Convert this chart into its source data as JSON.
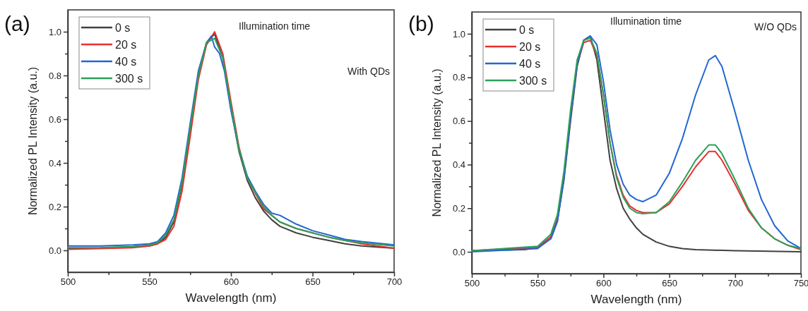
{
  "chart_data": [
    {
      "type": "line",
      "xlabel": "Wavelength (nm)",
      "ylabel": "Normalized PL Intensity (a.u.)",
      "legend_title": "Illumination time",
      "legend": "top left",
      "line_style": "solid",
      "marker": "none",
      "grid": false,
      "annotations": [
        "(a)",
        "With QDs"
      ],
      "xlim": [
        500,
        700
      ],
      "xticks": [
        500,
        {
          "value": 525,
          "label": null
        },
        550,
        {
          "value": 575,
          "label": null
        },
        600,
        {
          "value": 625,
          "label": null
        },
        650,
        {
          "value": 675,
          "label": null
        },
        700
      ],
      "ylim": [
        -0.1,
        1.1
      ],
      "yticks": [
        {
          "value": 0,
          "label": "0.0"
        },
        {
          "value": 0.1,
          "label": null
        },
        {
          "value": 0.2,
          "label": "0.2"
        },
        {
          "value": 0.3,
          "label": null
        },
        {
          "value": 0.4,
          "label": "0.4"
        },
        {
          "value": 0.5,
          "label": null
        },
        {
          "value": 0.6,
          "label": "0.6"
        },
        {
          "value": 0.7,
          "label": null
        },
        {
          "value": 0.8,
          "label": "0.8"
        },
        {
          "value": 0.9,
          "label": null
        },
        {
          "value": 1.0,
          "label": "1.0"
        }
      ],
      "series": [
        {
          "name": "0 s",
          "color": "#404040",
          "x": [
            500,
            520,
            540,
            550,
            555,
            560,
            565,
            570,
            575,
            580,
            585,
            590,
            595,
            600,
            605,
            610,
            615,
            620,
            625,
            630,
            640,
            650,
            660,
            670,
            680,
            700
          ],
          "values": [
            0.01,
            0.01,
            0.015,
            0.02,
            0.03,
            0.06,
            0.13,
            0.3,
            0.55,
            0.8,
            0.95,
            0.99,
            0.88,
            0.65,
            0.45,
            0.32,
            0.24,
            0.18,
            0.14,
            0.11,
            0.08,
            0.06,
            0.045,
            0.03,
            0.02,
            0.01
          ]
        },
        {
          "name": "20 s",
          "color": "#e8302e",
          "x": [
            500,
            520,
            540,
            550,
            555,
            560,
            565,
            570,
            575,
            580,
            585,
            590,
            595,
            600,
            605,
            610,
            620,
            630,
            640,
            650,
            660,
            670,
            680,
            700
          ],
          "values": [
            0.005,
            0.008,
            0.012,
            0.02,
            0.03,
            0.05,
            0.11,
            0.27,
            0.52,
            0.78,
            0.94,
            1.0,
            0.9,
            0.68,
            0.47,
            0.33,
            0.19,
            0.13,
            0.1,
            0.08,
            0.06,
            0.045,
            0.03,
            0.01
          ]
        },
        {
          "name": "40 s",
          "color": "#2166d4",
          "x": [
            500,
            520,
            540,
            550,
            555,
            560,
            565,
            570,
            575,
            580,
            585,
            588,
            590,
            593,
            596,
            600,
            605,
            610,
            615,
            620,
            625,
            630,
            635,
            640,
            650,
            660,
            670,
            680,
            700
          ],
          "values": [
            0.02,
            0.02,
            0.025,
            0.03,
            0.04,
            0.08,
            0.16,
            0.33,
            0.58,
            0.82,
            0.95,
            0.98,
            0.93,
            0.9,
            0.82,
            0.64,
            0.46,
            0.34,
            0.27,
            0.21,
            0.17,
            0.16,
            0.14,
            0.12,
            0.09,
            0.07,
            0.05,
            0.04,
            0.025
          ]
        },
        {
          "name": "300 s",
          "color": "#2ca05a",
          "x": [
            500,
            520,
            540,
            550,
            555,
            560,
            565,
            570,
            575,
            580,
            585,
            590,
            595,
            600,
            605,
            610,
            620,
            625,
            630,
            640,
            650,
            660,
            670,
            680,
            700
          ],
          "values": [
            0.012,
            0.013,
            0.018,
            0.025,
            0.035,
            0.07,
            0.14,
            0.31,
            0.56,
            0.8,
            0.95,
            0.97,
            0.88,
            0.66,
            0.46,
            0.33,
            0.2,
            0.16,
            0.13,
            0.1,
            0.08,
            0.06,
            0.045,
            0.035,
            0.02
          ]
        }
      ]
    },
    {
      "type": "line",
      "xlabel": "Wavelength (nm)",
      "ylabel": "Normalized PL Intensity (a.u.)",
      "legend_title": "Illumination time",
      "legend": "top left",
      "line_style": "solid",
      "marker": "none",
      "grid": false,
      "annotations": [
        "(b)",
        "W/O QDs"
      ],
      "xlim": [
        500,
        750
      ],
      "xticks": [
        500,
        {
          "value": 525,
          "label": null
        },
        550,
        {
          "value": 575,
          "label": null
        },
        600,
        {
          "value": 625,
          "label": null
        },
        650,
        {
          "value": 675,
          "label": null
        },
        700,
        {
          "value": 725,
          "label": null
        },
        750
      ],
      "ylim": [
        -0.1,
        1.1
      ],
      "yticks": [
        {
          "value": 0,
          "label": "0.0"
        },
        {
          "value": 0.1,
          "label": null
        },
        {
          "value": 0.2,
          "label": "0.2"
        },
        {
          "value": 0.3,
          "label": null
        },
        {
          "value": 0.4,
          "label": "0.4"
        },
        {
          "value": 0.5,
          "label": null
        },
        {
          "value": 0.6,
          "label": "0.6"
        },
        {
          "value": 0.7,
          "label": null
        },
        {
          "value": 0.8,
          "label": "0.8"
        },
        {
          "value": 0.9,
          "label": null
        },
        {
          "value": 1.0,
          "label": "1.0"
        }
      ],
      "series": [
        {
          "name": "0 s",
          "color": "#404040",
          "x": [
            500,
            540,
            550,
            560,
            565,
            570,
            575,
            580,
            585,
            590,
            595,
            600,
            605,
            610,
            615,
            620,
            625,
            630,
            640,
            650,
            660,
            670,
            700,
            750
          ],
          "values": [
            0.005,
            0.01,
            0.02,
            0.06,
            0.14,
            0.33,
            0.6,
            0.85,
            0.97,
            0.99,
            0.88,
            0.65,
            0.42,
            0.29,
            0.2,
            0.15,
            0.11,
            0.08,
            0.045,
            0.025,
            0.015,
            0.01,
            0.005,
            0.0
          ]
        },
        {
          "name": "20 s",
          "color": "#e8302e",
          "x": [
            500,
            550,
            560,
            565,
            570,
            575,
            580,
            585,
            590,
            595,
            600,
            605,
            610,
            615,
            620,
            625,
            630,
            640,
            650,
            660,
            670,
            680,
            685,
            690,
            700,
            710,
            720,
            730,
            740,
            750
          ],
          "values": [
            0.005,
            0.02,
            0.07,
            0.15,
            0.35,
            0.62,
            0.86,
            0.96,
            0.97,
            0.9,
            0.72,
            0.5,
            0.35,
            0.26,
            0.21,
            0.19,
            0.18,
            0.18,
            0.22,
            0.3,
            0.39,
            0.46,
            0.46,
            0.42,
            0.31,
            0.19,
            0.11,
            0.06,
            0.03,
            0.01
          ]
        },
        {
          "name": "40 s",
          "color": "#2166d4",
          "x": [
            500,
            550,
            560,
            565,
            570,
            575,
            580,
            585,
            590,
            595,
            600,
            605,
            610,
            615,
            620,
            625,
            630,
            640,
            650,
            660,
            670,
            680,
            685,
            690,
            700,
            710,
            720,
            730,
            740,
            750
          ],
          "values": [
            0.0,
            0.015,
            0.06,
            0.14,
            0.34,
            0.62,
            0.86,
            0.97,
            0.99,
            0.95,
            0.78,
            0.56,
            0.4,
            0.31,
            0.26,
            0.24,
            0.23,
            0.26,
            0.36,
            0.52,
            0.72,
            0.88,
            0.9,
            0.85,
            0.64,
            0.42,
            0.24,
            0.12,
            0.05,
            0.015
          ]
        },
        {
          "name": "300 s",
          "color": "#2ca05a",
          "x": [
            500,
            550,
            560,
            565,
            570,
            575,
            580,
            585,
            590,
            595,
            600,
            605,
            610,
            615,
            620,
            625,
            630,
            640,
            650,
            660,
            670,
            680,
            685,
            690,
            700,
            710,
            720,
            730,
            740,
            750
          ],
          "values": [
            0.005,
            0.025,
            0.08,
            0.17,
            0.37,
            0.65,
            0.88,
            0.97,
            0.98,
            0.91,
            0.72,
            0.5,
            0.34,
            0.25,
            0.2,
            0.18,
            0.175,
            0.18,
            0.23,
            0.32,
            0.42,
            0.49,
            0.49,
            0.45,
            0.33,
            0.2,
            0.11,
            0.06,
            0.03,
            0.015
          ]
        }
      ]
    }
  ]
}
